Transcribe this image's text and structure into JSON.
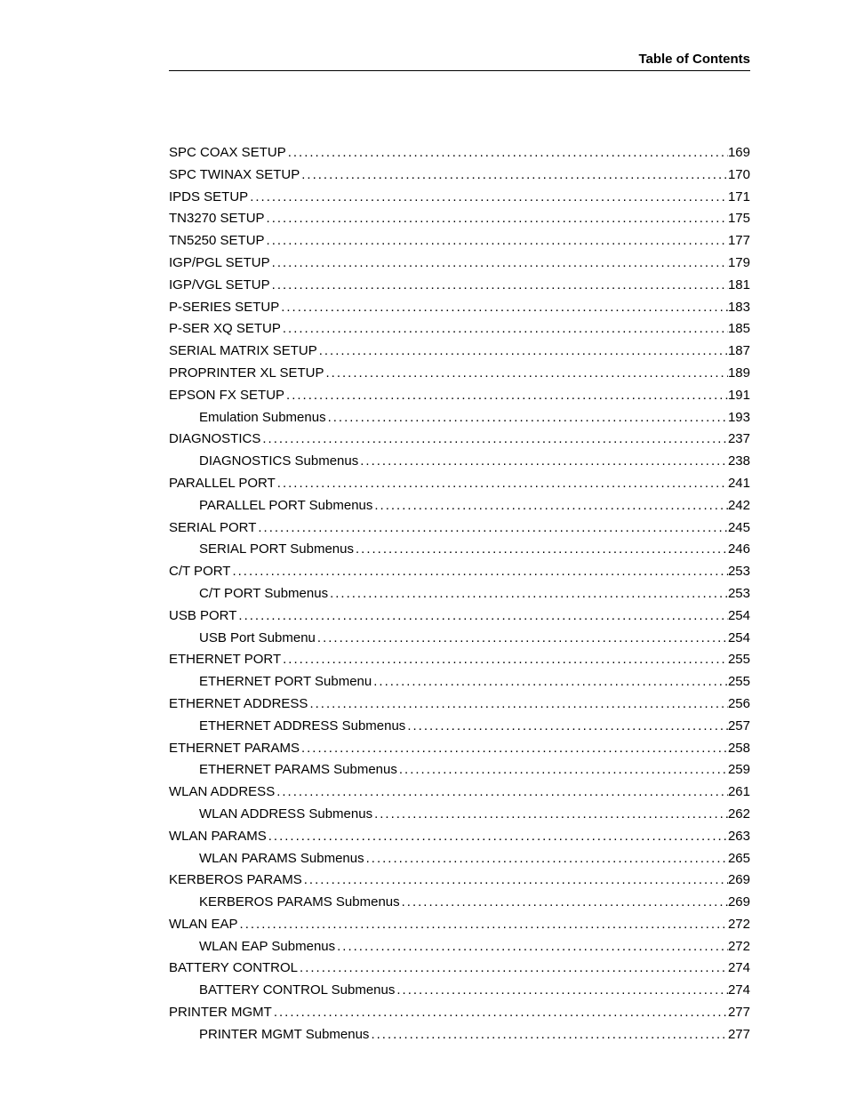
{
  "header": {
    "title": "Table of Contents"
  },
  "typography": {
    "body_font_family": "Arial, Helvetica, sans-serif",
    "body_font_size_pt": 11,
    "header_font_size_pt": 11,
    "header_font_weight": "bold",
    "text_color": "#000000",
    "background_color": "#ffffff",
    "rule_color": "#000000"
  },
  "toc": {
    "entries": [
      {
        "label": "SPC COAX SETUP",
        "page": 169,
        "indent": 0
      },
      {
        "label": "SPC TWINAX SETUP",
        "page": 170,
        "indent": 0
      },
      {
        "label": "IPDS SETUP",
        "page": 171,
        "indent": 0
      },
      {
        "label": "TN3270 SETUP",
        "page": 175,
        "indent": 0
      },
      {
        "label": "TN5250 SETUP",
        "page": 177,
        "indent": 0
      },
      {
        "label": "IGP/PGL SETUP",
        "page": 179,
        "indent": 0
      },
      {
        "label": "IGP/VGL SETUP",
        "page": 181,
        "indent": 0
      },
      {
        "label": "P-SERIES SETUP",
        "page": 183,
        "indent": 0
      },
      {
        "label": "P-SER XQ SETUP",
        "page": 185,
        "indent": 0
      },
      {
        "label": "SERIAL MATRIX SETUP",
        "page": 187,
        "indent": 0
      },
      {
        "label": "PROPRINTER XL SETUP",
        "page": 189,
        "indent": 0
      },
      {
        "label": "EPSON FX SETUP",
        "page": 191,
        "indent": 0
      },
      {
        "label": "Emulation Submenus",
        "page": 193,
        "indent": 1
      },
      {
        "label": "DIAGNOSTICS",
        "page": 237,
        "indent": 0
      },
      {
        "label": "DIAGNOSTICS Submenus",
        "page": 238,
        "indent": 1
      },
      {
        "label": "PARALLEL PORT",
        "page": 241,
        "indent": 0
      },
      {
        "label": "PARALLEL PORT Submenus",
        "page": 242,
        "indent": 1
      },
      {
        "label": "SERIAL PORT",
        "page": 245,
        "indent": 0
      },
      {
        "label": "SERIAL PORT Submenus",
        "page": 246,
        "indent": 1
      },
      {
        "label": "C/T PORT",
        "page": 253,
        "indent": 0
      },
      {
        "label": "C/T PORT Submenus",
        "page": 253,
        "indent": 1
      },
      {
        "label": "USB PORT",
        "page": 254,
        "indent": 0
      },
      {
        "label": "USB Port Submenu",
        "page": 254,
        "indent": 1
      },
      {
        "label": "ETHERNET PORT",
        "page": 255,
        "indent": 0
      },
      {
        "label": "ETHERNET PORT Submenu",
        "page": 255,
        "indent": 1
      },
      {
        "label": "ETHERNET ADDRESS",
        "page": 256,
        "indent": 0
      },
      {
        "label": "ETHERNET ADDRESS Submenus",
        "page": 257,
        "indent": 1
      },
      {
        "label": "ETHERNET PARAMS",
        "page": 258,
        "indent": 0
      },
      {
        "label": "ETHERNET PARAMS Submenus",
        "page": 259,
        "indent": 1
      },
      {
        "label": "WLAN ADDRESS",
        "page": 261,
        "indent": 0
      },
      {
        "label": "WLAN ADDRESS Submenus",
        "page": 262,
        "indent": 1
      },
      {
        "label": "WLAN PARAMS",
        "page": 263,
        "indent": 0
      },
      {
        "label": "WLAN PARAMS Submenus",
        "page": 265,
        "indent": 1
      },
      {
        "label": "KERBEROS PARAMS",
        "page": 269,
        "indent": 0
      },
      {
        "label": "KERBEROS PARAMS Submenus",
        "page": 269,
        "indent": 1
      },
      {
        "label": "WLAN EAP",
        "page": 272,
        "indent": 0
      },
      {
        "label": "WLAN EAP Submenus",
        "page": 272,
        "indent": 1
      },
      {
        "label": "BATTERY CONTROL",
        "page": 274,
        "indent": 0
      },
      {
        "label": "BATTERY CONTROL Submenus",
        "page": 274,
        "indent": 1
      },
      {
        "label": "PRINTER MGMT",
        "page": 277,
        "indent": 0
      },
      {
        "label": "PRINTER MGMT Submenus",
        "page": 277,
        "indent": 1
      }
    ]
  }
}
